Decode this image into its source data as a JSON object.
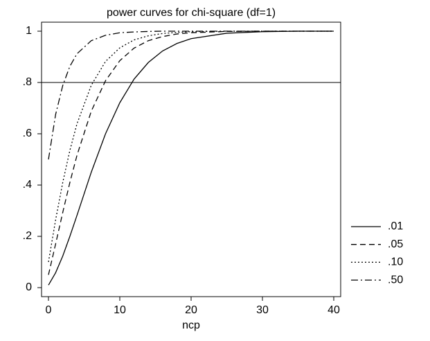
{
  "chart_data": {
    "type": "line",
    "title": "power curves for chi-square (df=1)",
    "x_label": "ncp",
    "x": [
      0,
      1,
      2,
      3,
      4,
      6,
      8,
      10,
      12,
      14,
      16,
      18,
      20,
      25,
      30,
      35,
      40
    ],
    "series": [
      {
        "name": ".01",
        "color": "#000000",
        "dash": "solid",
        "values": [
          0.01,
          0.058,
          0.123,
          0.2,
          0.282,
          0.45,
          0.6,
          0.721,
          0.813,
          0.878,
          0.923,
          0.952,
          0.971,
          0.992,
          0.998,
          1.0,
          1.0
        ]
      },
      {
        "name": ".05",
        "color": "#000000",
        "dash": "dashed",
        "values": [
          0.05,
          0.17,
          0.293,
          0.41,
          0.516,
          0.688,
          0.807,
          0.885,
          0.934,
          0.963,
          0.979,
          0.989,
          0.994,
          0.999,
          1.0,
          1.0,
          1.0
        ]
      },
      {
        "name": ".10",
        "color": "#000000",
        "dash": "dotted",
        "values": [
          0.1,
          0.264,
          0.41,
          0.535,
          0.639,
          0.789,
          0.882,
          0.935,
          0.966,
          0.982,
          0.991,
          0.995,
          0.998,
          1.0,
          1.0,
          1.0,
          1.0
        ]
      },
      {
        "name": ".50",
        "color": "#000000",
        "dash": "dashdot",
        "values": [
          0.5,
          0.675,
          0.788,
          0.863,
          0.912,
          0.963,
          0.984,
          0.994,
          0.997,
          0.999,
          1.0,
          1.0,
          1.0,
          1.0,
          1.0,
          1.0,
          1.0
        ]
      }
    ],
    "xlim": [
      0,
      40
    ],
    "xticks": [
      0,
      10,
      20,
      30,
      40
    ],
    "ylim": [
      0,
      1
    ],
    "yticks": [
      0,
      {
        "value": 0.2,
        "label": ".2"
      },
      {
        "value": 0.4,
        "label": ".4"
      },
      {
        "value": 0.6,
        "label": ".6"
      },
      {
        "value": 0.8,
        "label": ".8"
      },
      1
    ],
    "hline": 0.8,
    "legend": "right"
  }
}
